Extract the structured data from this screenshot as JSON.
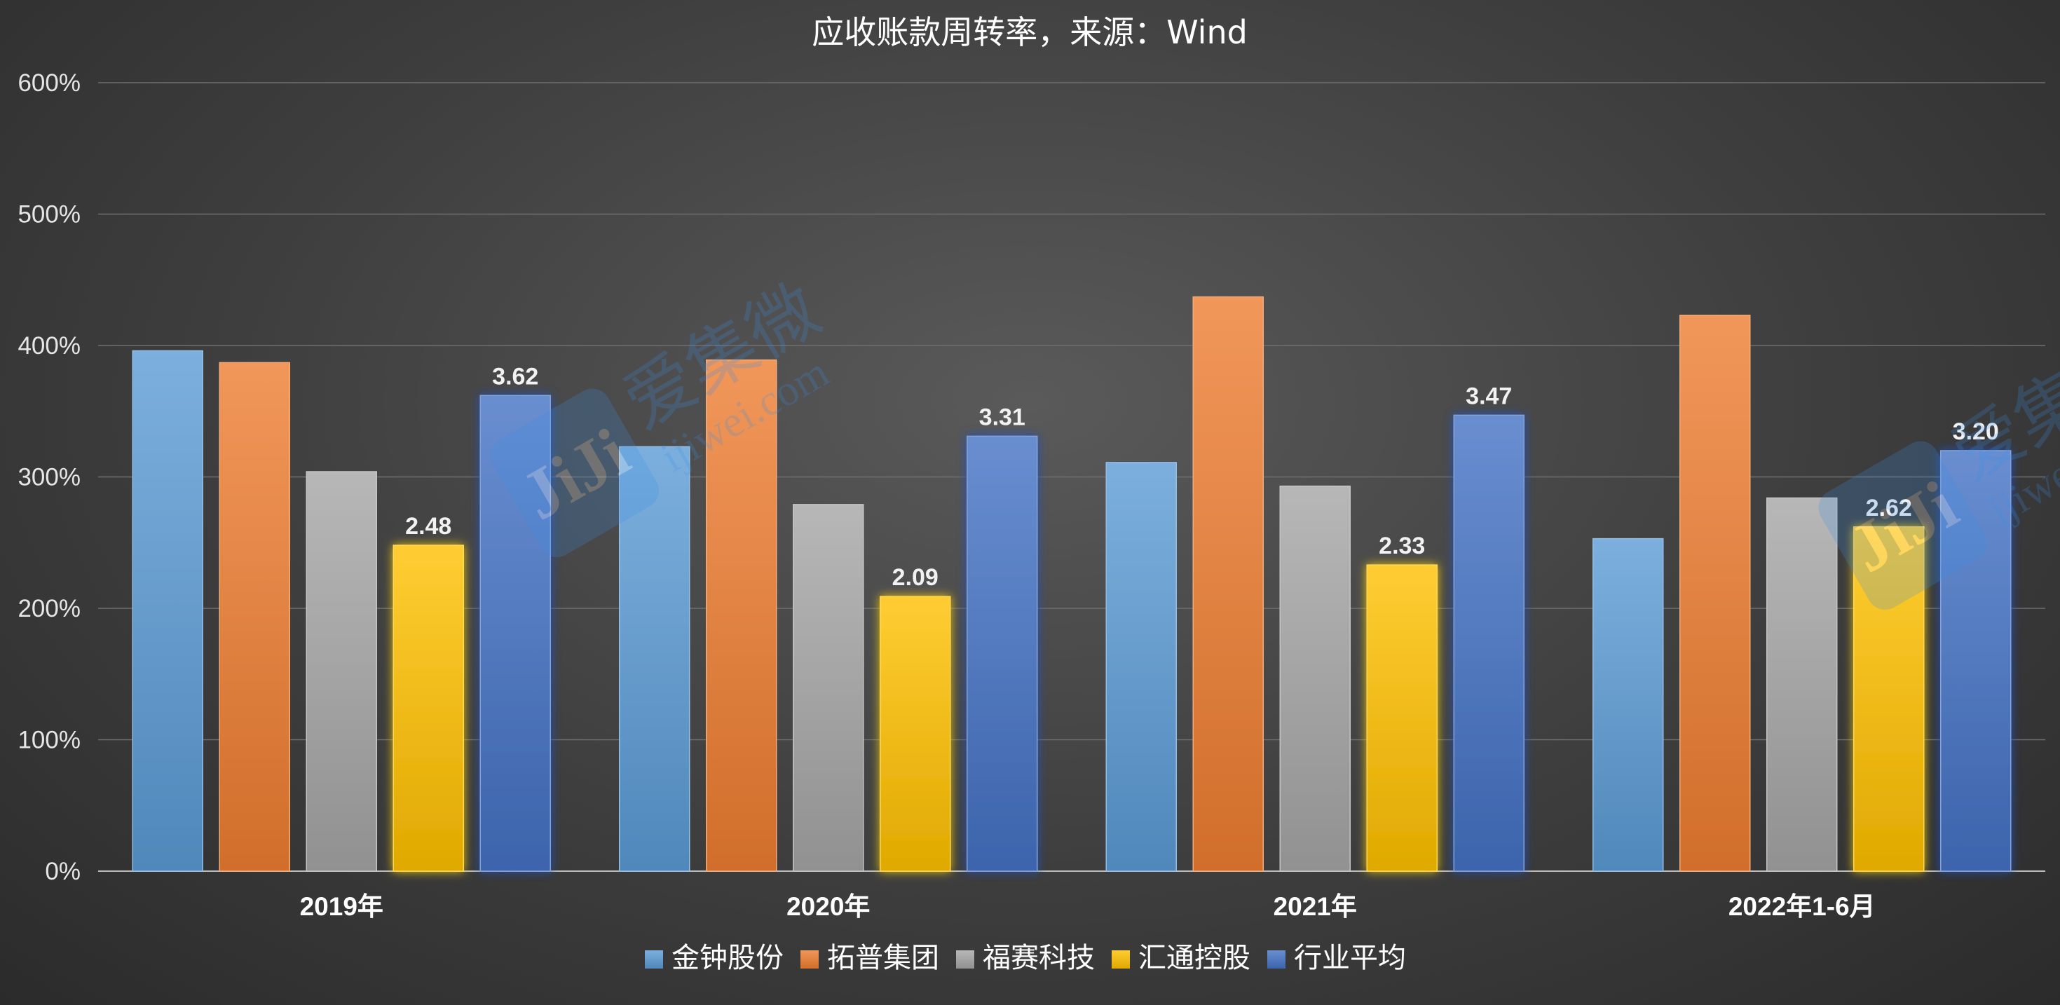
{
  "chart_data": {
    "type": "bar",
    "title": "应收账款周转率，来源：Wind",
    "categories": [
      "2019年",
      "2020年",
      "2021年",
      "2022年1-6月"
    ],
    "yticks": [
      "0%",
      "100%",
      "200%",
      "300%",
      "400%",
      "500%",
      "600%"
    ],
    "ylim": [
      0,
      6
    ],
    "grid": true,
    "legend_position": "bottom",
    "series": [
      {
        "name": "金钟股份",
        "values": [
          3.96,
          3.23,
          3.11,
          2.53
        ],
        "color": "#5b9bd5",
        "labels": null
      },
      {
        "name": "拓普集团",
        "values": [
          3.87,
          3.89,
          4.37,
          4.23
        ],
        "color": "#ed7d31",
        "labels": null
      },
      {
        "name": "福赛科技",
        "values": [
          3.04,
          2.79,
          2.93,
          2.84
        ],
        "color": "#a5a5a5",
        "labels": null
      },
      {
        "name": "汇通控股",
        "values": [
          2.48,
          2.09,
          2.33,
          2.62
        ],
        "color": "#ffc000",
        "labels": [
          "2.48",
          "2.09",
          "2.33",
          "2.62"
        ]
      },
      {
        "name": "行业平均",
        "values": [
          3.62,
          3.31,
          3.47,
          3.2
        ],
        "color": "#4472c4",
        "labels": [
          "3.62",
          "3.31",
          "3.47",
          "3.20"
        ]
      }
    ]
  },
  "watermark": {
    "logo_text": "JiJi",
    "brand_cn": "爱集微",
    "brand_url": "ijiwei.com"
  }
}
